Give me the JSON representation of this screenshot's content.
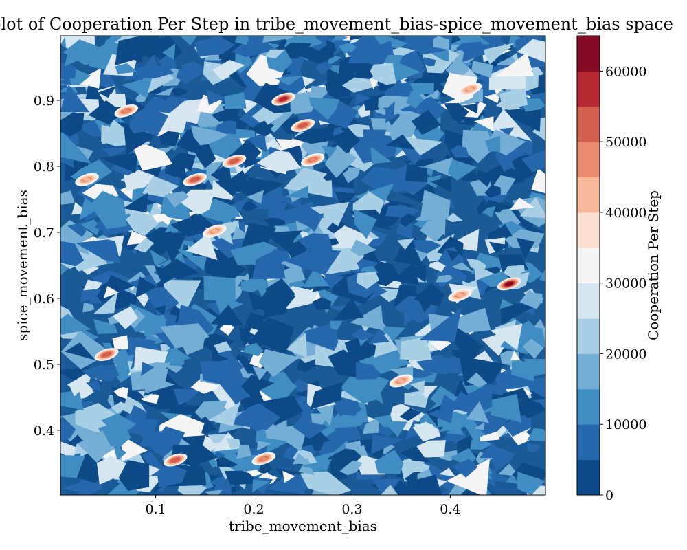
{
  "chart_data": {
    "type": "heatmap",
    "title": "hase plot of Cooperation Per Step in tribe_movement_bias-spice_movement_bias space",
    "xlabel": "tribe_movement_bias",
    "ylabel": "spice_movement_bias",
    "colorbar_label": "Cooperation Per Step",
    "xlim": [
      0.003,
      0.497
    ],
    "ylim": [
      0.302,
      0.998
    ],
    "x_ticks": [
      0.1,
      0.2,
      0.3,
      0.4
    ],
    "x_tick_labels": [
      "0.1",
      "0.2",
      "0.3",
      "0.4"
    ],
    "y_ticks": [
      0.4,
      0.5,
      0.6,
      0.7,
      0.8,
      0.9
    ],
    "y_tick_labels": [
      "0.4",
      "0.5",
      "0.6",
      "0.7",
      "0.8",
      "0.9"
    ],
    "colorbar_levels": [
      0,
      5000,
      10000,
      15000,
      20000,
      25000,
      30000,
      35000,
      40000,
      45000,
      50000,
      55000,
      60000,
      65000
    ],
    "colorbar_ticks": [
      0,
      10000,
      20000,
      30000,
      40000,
      50000,
      60000
    ],
    "colorbar_tick_labels": [
      "0",
      "10000",
      "20000",
      "30000",
      "40000",
      "50000",
      "60000"
    ],
    "colormap": "RdBu_r",
    "level_colors": [
      "#0d4a87",
      "#2668ad",
      "#3f8dc2",
      "#74aed4",
      "#a9cfe5",
      "#d5e6f1",
      "#f5f5f5",
      "#fbe0d2",
      "#f6b899",
      "#e88a6c",
      "#d35f4f",
      "#b72a33",
      "#840a25"
    ],
    "hot_spots": [
      {
        "x": 0.46,
        "y": 0.622,
        "value": 62000
      },
      {
        "x": 0.18,
        "y": 0.808,
        "value": 52000
      },
      {
        "x": 0.26,
        "y": 0.81,
        "value": 48000
      },
      {
        "x": 0.14,
        "y": 0.78,
        "value": 50000
      },
      {
        "x": 0.05,
        "y": 0.515,
        "value": 52000
      },
      {
        "x": 0.23,
        "y": 0.902,
        "value": 55000
      },
      {
        "x": 0.07,
        "y": 0.884,
        "value": 45000
      },
      {
        "x": 0.12,
        "y": 0.355,
        "value": 50000
      },
      {
        "x": 0.21,
        "y": 0.357,
        "value": 45000
      },
      {
        "x": 0.35,
        "y": 0.475,
        "value": 44000
      },
      {
        "x": 0.25,
        "y": 0.862,
        "value": 50000
      },
      {
        "x": 0.41,
        "y": 0.605,
        "value": 42000
      },
      {
        "x": 0.42,
        "y": 0.917,
        "value": 40000
      },
      {
        "x": 0.16,
        "y": 0.702,
        "value": 44000
      },
      {
        "x": 0.03,
        "y": 0.78,
        "value": 40000
      }
    ],
    "grid": false
  }
}
